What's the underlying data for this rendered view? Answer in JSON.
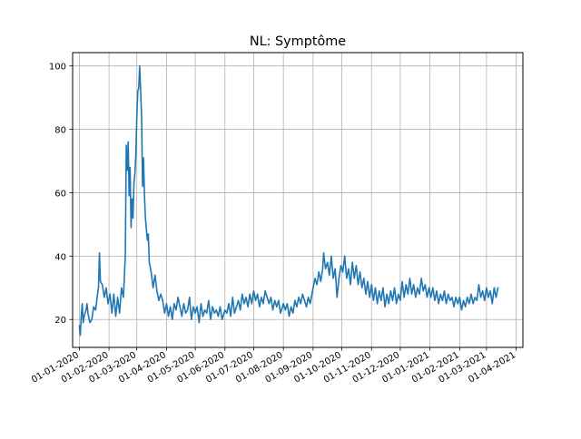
{
  "chart_data": {
    "type": "line",
    "title": "NL: Symptôme",
    "xlabel": "",
    "ylabel": "",
    "x_range": [
      "2019-12-25",
      "2021-04-08"
    ],
    "ylim": [
      11.2,
      104.2
    ],
    "yticks": [
      20,
      40,
      60,
      80,
      100
    ],
    "xticks": [
      "2020-01-01",
      "2020-02-01",
      "2020-03-01",
      "2020-04-01",
      "2020-05-01",
      "2020-06-01",
      "2020-07-01",
      "2020-08-01",
      "2020-09-01",
      "2020-10-01",
      "2020-11-01",
      "2020-12-01",
      "2021-01-01",
      "2021-02-01",
      "2021-03-01",
      "2021-04-01"
    ],
    "xtick_labels": [
      "01-01-2020",
      "01-02-2020",
      "01-03-2020",
      "01-04-2020",
      "01-05-2020",
      "01-06-2020",
      "01-07-2020",
      "01-08-2020",
      "01-09-2020",
      "01-10-2020",
      "01-11-2020",
      "01-12-2020",
      "01-01-2021",
      "01-02-2021",
      "01-03-2021",
      "01-04-2021"
    ],
    "grid": true,
    "line_color": "#1f77b4",
    "series": [
      {
        "name": "",
        "points": [
          [
            "2020-01-01",
            18
          ],
          [
            "2020-01-02",
            15
          ],
          [
            "2020-01-03",
            21
          ],
          [
            "2020-01-04",
            25
          ],
          [
            "2020-01-05",
            19
          ],
          [
            "2020-01-06",
            21
          ],
          [
            "2020-01-08",
            23
          ],
          [
            "2020-01-09",
            25
          ],
          [
            "2020-01-10",
            22
          ],
          [
            "2020-01-12",
            19
          ],
          [
            "2020-01-14",
            20
          ],
          [
            "2020-01-16",
            24
          ],
          [
            "2020-01-18",
            23
          ],
          [
            "2020-01-20",
            28
          ],
          [
            "2020-01-21",
            30
          ],
          [
            "2020-01-22",
            41
          ],
          [
            "2020-01-23",
            32
          ],
          [
            "2020-01-25",
            31
          ],
          [
            "2020-01-27",
            27
          ],
          [
            "2020-01-29",
            30
          ],
          [
            "2020-01-31",
            25
          ],
          [
            "2020-02-02",
            28
          ],
          [
            "2020-02-04",
            22
          ],
          [
            "2020-02-06",
            28
          ],
          [
            "2020-02-08",
            21
          ],
          [
            "2020-02-10",
            27
          ],
          [
            "2020-02-12",
            22
          ],
          [
            "2020-02-14",
            30
          ],
          [
            "2020-02-16",
            27
          ],
          [
            "2020-02-18",
            40
          ],
          [
            "2020-02-19",
            75
          ],
          [
            "2020-02-20",
            67
          ],
          [
            "2020-02-21",
            76
          ],
          [
            "2020-02-22",
            59
          ],
          [
            "2020-02-23",
            68
          ],
          [
            "2020-02-24",
            49
          ],
          [
            "2020-02-25",
            58
          ],
          [
            "2020-02-26",
            52
          ],
          [
            "2020-02-27",
            63
          ],
          [
            "2020-02-28",
            66
          ],
          [
            "2020-02-29",
            72
          ],
          [
            "2020-03-01",
            84
          ],
          [
            "2020-03-02",
            92
          ],
          [
            "2020-03-03",
            93
          ],
          [
            "2020-03-04",
            100
          ],
          [
            "2020-03-05",
            92
          ],
          [
            "2020-03-06",
            84
          ],
          [
            "2020-03-07",
            62
          ],
          [
            "2020-03-08",
            71
          ],
          [
            "2020-03-09",
            59
          ],
          [
            "2020-03-10",
            52
          ],
          [
            "2020-03-12",
            45
          ],
          [
            "2020-03-13",
            47
          ],
          [
            "2020-03-14",
            38
          ],
          [
            "2020-03-16",
            35
          ],
          [
            "2020-03-18",
            30
          ],
          [
            "2020-03-20",
            34
          ],
          [
            "2020-03-22",
            29
          ],
          [
            "2020-03-24",
            26
          ],
          [
            "2020-03-26",
            28
          ],
          [
            "2020-03-28",
            26
          ],
          [
            "2020-03-30",
            22
          ],
          [
            "2020-04-01",
            25
          ],
          [
            "2020-04-03",
            21
          ],
          [
            "2020-04-05",
            24
          ],
          [
            "2020-04-07",
            20
          ],
          [
            "2020-04-09",
            25
          ],
          [
            "2020-04-11",
            23
          ],
          [
            "2020-04-13",
            27
          ],
          [
            "2020-04-15",
            24
          ],
          [
            "2020-04-17",
            21
          ],
          [
            "2020-04-19",
            25
          ],
          [
            "2020-04-21",
            22
          ],
          [
            "2020-04-23",
            23
          ],
          [
            "2020-04-25",
            27
          ],
          [
            "2020-04-27",
            20
          ],
          [
            "2020-04-29",
            24
          ],
          [
            "2020-05-01",
            22
          ],
          [
            "2020-05-03",
            24
          ],
          [
            "2020-05-05",
            19
          ],
          [
            "2020-05-07",
            25
          ],
          [
            "2020-05-09",
            21
          ],
          [
            "2020-05-11",
            23
          ],
          [
            "2020-05-13",
            22
          ],
          [
            "2020-05-15",
            26
          ],
          [
            "2020-05-17",
            20
          ],
          [
            "2020-05-19",
            24
          ],
          [
            "2020-05-21",
            22
          ],
          [
            "2020-05-23",
            23
          ],
          [
            "2020-05-25",
            21
          ],
          [
            "2020-05-27",
            24
          ],
          [
            "2020-05-29",
            20
          ],
          [
            "2020-06-01",
            23
          ],
          [
            "2020-06-03",
            22
          ],
          [
            "2020-06-05",
            25
          ],
          [
            "2020-06-07",
            21
          ],
          [
            "2020-06-09",
            27
          ],
          [
            "2020-06-11",
            22
          ],
          [
            "2020-06-13",
            24
          ],
          [
            "2020-06-15",
            26
          ],
          [
            "2020-06-17",
            23
          ],
          [
            "2020-06-19",
            28
          ],
          [
            "2020-06-21",
            25
          ],
          [
            "2020-06-23",
            27
          ],
          [
            "2020-06-25",
            24
          ],
          [
            "2020-06-27",
            28
          ],
          [
            "2020-06-29",
            25
          ],
          [
            "2020-07-01",
            29
          ],
          [
            "2020-07-03",
            26
          ],
          [
            "2020-07-05",
            28
          ],
          [
            "2020-07-07",
            24
          ],
          [
            "2020-07-09",
            27
          ],
          [
            "2020-07-11",
            25
          ],
          [
            "2020-07-13",
            29
          ],
          [
            "2020-07-15",
            27
          ],
          [
            "2020-07-17",
            25
          ],
          [
            "2020-07-19",
            27
          ],
          [
            "2020-07-21",
            23
          ],
          [
            "2020-07-23",
            26
          ],
          [
            "2020-07-25",
            24
          ],
          [
            "2020-07-27",
            26
          ],
          [
            "2020-07-29",
            22
          ],
          [
            "2020-08-01",
            25
          ],
          [
            "2020-08-03",
            23
          ],
          [
            "2020-08-05",
            25
          ],
          [
            "2020-08-07",
            21
          ],
          [
            "2020-08-09",
            24
          ],
          [
            "2020-08-11",
            22
          ],
          [
            "2020-08-13",
            26
          ],
          [
            "2020-08-15",
            24
          ],
          [
            "2020-08-17",
            27
          ],
          [
            "2020-08-19",
            25
          ],
          [
            "2020-08-21",
            28
          ],
          [
            "2020-08-23",
            26
          ],
          [
            "2020-08-25",
            24
          ],
          [
            "2020-08-27",
            27
          ],
          [
            "2020-08-29",
            25
          ],
          [
            "2020-09-01",
            30
          ],
          [
            "2020-09-03",
            33
          ],
          [
            "2020-09-05",
            31
          ],
          [
            "2020-09-07",
            35
          ],
          [
            "2020-09-09",
            32
          ],
          [
            "2020-09-11",
            36
          ],
          [
            "2020-09-12",
            41
          ],
          [
            "2020-09-14",
            36
          ],
          [
            "2020-09-16",
            38
          ],
          [
            "2020-09-18",
            34
          ],
          [
            "2020-09-20",
            40
          ],
          [
            "2020-09-22",
            33
          ],
          [
            "2020-09-24",
            36
          ],
          [
            "2020-09-26",
            27
          ],
          [
            "2020-09-28",
            33
          ],
          [
            "2020-09-30",
            37
          ],
          [
            "2020-10-02",
            35
          ],
          [
            "2020-10-04",
            40
          ],
          [
            "2020-10-06",
            33
          ],
          [
            "2020-10-08",
            36
          ],
          [
            "2020-10-10",
            31
          ],
          [
            "2020-10-12",
            38
          ],
          [
            "2020-10-14",
            33
          ],
          [
            "2020-10-16",
            37
          ],
          [
            "2020-10-18",
            31
          ],
          [
            "2020-10-20",
            35
          ],
          [
            "2020-10-22",
            30
          ],
          [
            "2020-10-24",
            33
          ],
          [
            "2020-10-26",
            28
          ],
          [
            "2020-10-28",
            32
          ],
          [
            "2020-10-30",
            27
          ],
          [
            "2020-11-01",
            31
          ],
          [
            "2020-11-03",
            26
          ],
          [
            "2020-11-05",
            30
          ],
          [
            "2020-11-07",
            25
          ],
          [
            "2020-11-09",
            29
          ],
          [
            "2020-11-11",
            26
          ],
          [
            "2020-11-13",
            30
          ],
          [
            "2020-11-15",
            24
          ],
          [
            "2020-11-17",
            28
          ],
          [
            "2020-11-19",
            25
          ],
          [
            "2020-11-21",
            29
          ],
          [
            "2020-11-23",
            26
          ],
          [
            "2020-11-25",
            30
          ],
          [
            "2020-11-27",
            25
          ],
          [
            "2020-11-29",
            28
          ],
          [
            "2020-12-01",
            26
          ],
          [
            "2020-12-03",
            32
          ],
          [
            "2020-12-05",
            27
          ],
          [
            "2020-12-07",
            31
          ],
          [
            "2020-12-09",
            28
          ],
          [
            "2020-12-11",
            33
          ],
          [
            "2020-12-13",
            28
          ],
          [
            "2020-12-15",
            31
          ],
          [
            "2020-12-17",
            27
          ],
          [
            "2020-12-19",
            30
          ],
          [
            "2020-12-21",
            28
          ],
          [
            "2020-12-23",
            33
          ],
          [
            "2020-12-25",
            29
          ],
          [
            "2020-12-27",
            31
          ],
          [
            "2020-12-29",
            27
          ],
          [
            "2020-12-31",
            30
          ],
          [
            "2021-01-02",
            27
          ],
          [
            "2021-01-04",
            30
          ],
          [
            "2021-01-06",
            26
          ],
          [
            "2021-01-08",
            29
          ],
          [
            "2021-01-10",
            25
          ],
          [
            "2021-01-12",
            28
          ],
          [
            "2021-01-14",
            26
          ],
          [
            "2021-01-16",
            29
          ],
          [
            "2021-01-18",
            25
          ],
          [
            "2021-01-20",
            28
          ],
          [
            "2021-01-22",
            26
          ],
          [
            "2021-01-24",
            27
          ],
          [
            "2021-01-26",
            24
          ],
          [
            "2021-01-28",
            27
          ],
          [
            "2021-01-30",
            25
          ],
          [
            "2021-02-01",
            27
          ],
          [
            "2021-02-03",
            23
          ],
          [
            "2021-02-05",
            26
          ],
          [
            "2021-02-07",
            24
          ],
          [
            "2021-02-09",
            27
          ],
          [
            "2021-02-11",
            25
          ],
          [
            "2021-02-13",
            28
          ],
          [
            "2021-02-15",
            25
          ],
          [
            "2021-02-17",
            27
          ],
          [
            "2021-02-19",
            26
          ],
          [
            "2021-02-21",
            31
          ],
          [
            "2021-02-23",
            27
          ],
          [
            "2021-02-25",
            29
          ],
          [
            "2021-02-27",
            26
          ],
          [
            "2021-03-01",
            30
          ],
          [
            "2021-03-03",
            27
          ],
          [
            "2021-03-05",
            29
          ],
          [
            "2021-03-07",
            25
          ],
          [
            "2021-03-09",
            30
          ],
          [
            "2021-03-11",
            27
          ],
          [
            "2021-03-13",
            30
          ]
        ]
      }
    ]
  }
}
